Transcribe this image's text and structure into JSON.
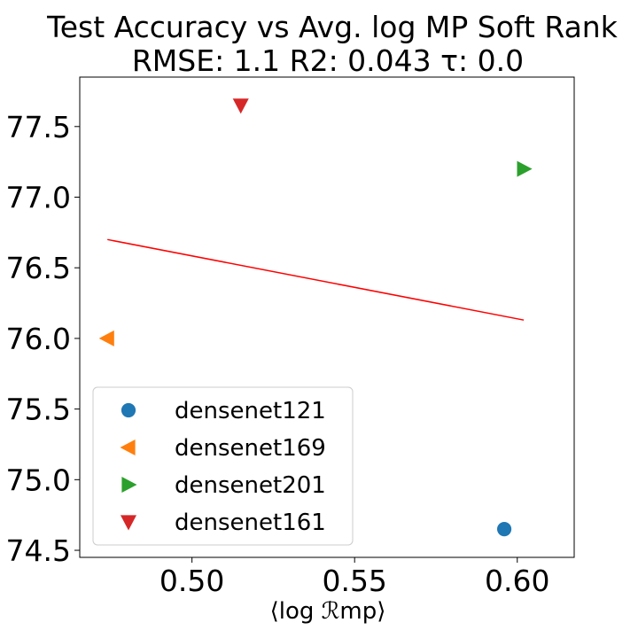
{
  "chart_data": {
    "type": "scatter",
    "title": "Test Accuracy vs Avg. log MP Soft Rank",
    "subtitle": "RMSE: 1.1 R2: 0.043 τ: 0.0",
    "xlabel": "⟨log ℛmp⟩",
    "ylabel": "",
    "xlim": [
      0.4655,
      0.6175
    ],
    "ylim": [
      74.45,
      77.85
    ],
    "xticks": [
      0.5,
      0.55,
      0.6
    ],
    "xtick_labels": [
      "0.50",
      "0.55",
      "0.60"
    ],
    "yticks": [
      74.5,
      75.0,
      75.5,
      76.0,
      76.5,
      77.0,
      77.5
    ],
    "ytick_labels": [
      "74.5",
      "75.0",
      "75.5",
      "76.0",
      "76.5",
      "77.0",
      "77.5"
    ],
    "grid": false,
    "legend_position": "lower-left",
    "series": [
      {
        "name": "densenet121",
        "marker": "circle",
        "color": "#1f77b4",
        "x": 0.596,
        "y": 74.65
      },
      {
        "name": "densenet169",
        "marker": "triangle-left",
        "color": "#ff7f0e",
        "x": 0.474,
        "y": 76.0
      },
      {
        "name": "densenet201",
        "marker": "triangle-right",
        "color": "#2ca02c",
        "x": 0.602,
        "y": 77.2
      },
      {
        "name": "densenet161",
        "marker": "triangle-down",
        "color": "#d62728",
        "x": 0.515,
        "y": 77.65
      }
    ],
    "fit_line": {
      "color": "#ff0000",
      "x": [
        0.474,
        0.602
      ],
      "y": [
        76.7,
        76.13
      ]
    }
  }
}
